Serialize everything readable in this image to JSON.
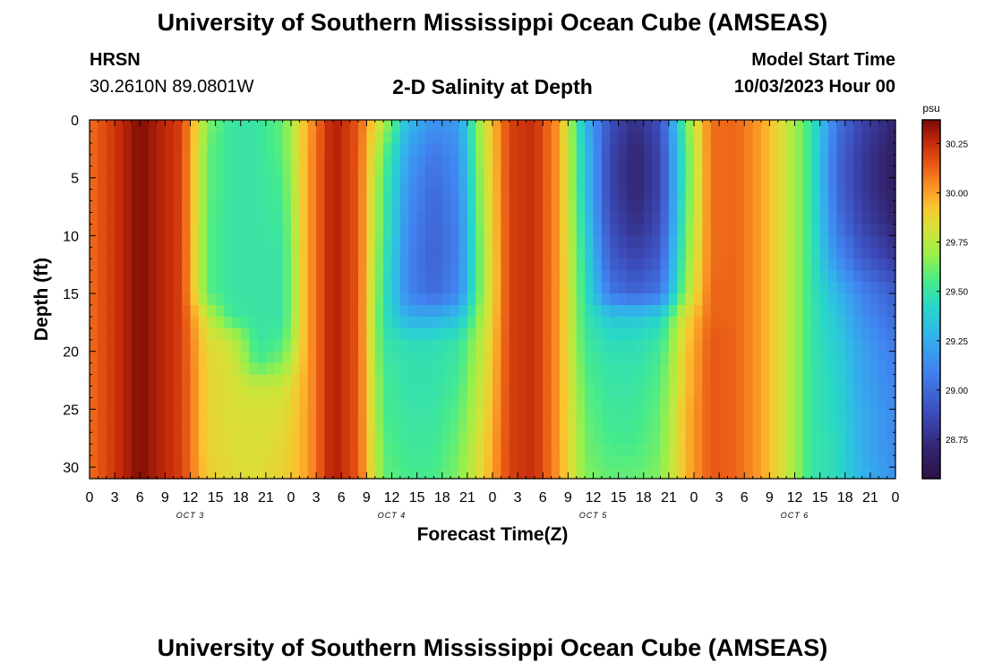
{
  "header": {
    "title": "University of Southern Mississippi Ocean Cube (AMSEAS)",
    "station": "HRSN",
    "coordinates": "30.2610N  89.0801W",
    "subtitle": "2-D Salinity at Depth",
    "model_start_label": "Model Start Time",
    "model_start_value": "10/03/2023 Hour 00"
  },
  "footer": {
    "title": "University of Southern Mississippi Ocean Cube (AMSEAS)"
  },
  "chart_data": {
    "type": "heatmap",
    "title": "2-D Salinity at Depth",
    "xlabel": "Forecast Time(Z)",
    "ylabel": "Depth (ft)",
    "x_range_hours": [
      0,
      96
    ],
    "ylim": [
      0,
      31
    ],
    "y_inverted": true,
    "xticks": [
      0,
      3,
      6,
      9,
      12,
      15,
      18,
      21,
      24,
      27,
      30,
      33,
      36,
      39,
      42,
      45,
      48,
      51,
      54,
      57,
      60,
      63,
      66,
      69,
      72,
      75,
      78,
      81,
      84,
      87,
      90,
      93,
      96
    ],
    "xtick_labels": [
      "0",
      "3",
      "6",
      "9",
      "12",
      "15",
      "18",
      "21",
      "0",
      "3",
      "6",
      "9",
      "12",
      "15",
      "18",
      "21",
      "0",
      "3",
      "6",
      "9",
      "12",
      "15",
      "18",
      "21",
      "0",
      "3",
      "6",
      "9",
      "12",
      "15",
      "18",
      "21",
      "0"
    ],
    "day_labels": [
      {
        "at_hour": 12,
        "label": "OCT 3"
      },
      {
        "at_hour": 36,
        "label": "OCT 4"
      },
      {
        "at_hour": 60,
        "label": "OCT 5"
      },
      {
        "at_hour": 84,
        "label": "OCT 6"
      }
    ],
    "yticks": [
      0,
      5,
      10,
      15,
      20,
      25,
      30
    ],
    "colorbar": {
      "units": "psu",
      "range": [
        28.55,
        30.37
      ],
      "ticks": [
        30.25,
        30.0,
        29.75,
        29.5,
        29.25,
        29.0,
        28.75
      ],
      "tick_labels": [
        "30.25",
        "30.00",
        "29.75",
        "29.50",
        "29.25",
        "29.00",
        "28.75"
      ]
    },
    "time_hours": [
      0,
      6,
      11,
      14,
      17,
      20,
      23,
      26,
      29,
      32,
      35,
      38,
      41,
      44,
      47,
      50,
      53,
      56,
      59,
      62,
      65,
      68,
      71,
      74,
      77,
      80,
      83,
      86,
      89,
      92,
      96
    ],
    "depth_ft": [
      0,
      3,
      6,
      9,
      12,
      15,
      17,
      19,
      21,
      23,
      25,
      28,
      31
    ],
    "salinity_psu": [
      [
        30.1,
        30.1,
        30.1,
        30.1,
        30.1,
        30.1,
        30.1,
        30.1,
        30.1,
        30.1,
        30.1,
        30.1,
        30.1
      ],
      [
        30.36,
        30.36,
        30.36,
        30.36,
        30.36,
        30.36,
        30.36,
        30.36,
        30.36,
        30.36,
        30.36,
        30.36,
        30.36
      ],
      [
        30.2,
        30.2,
        30.2,
        30.2,
        30.2,
        30.2,
        30.2,
        30.2,
        30.2,
        30.2,
        30.2,
        30.2,
        30.2
      ],
      [
        29.65,
        29.6,
        29.6,
        29.58,
        29.58,
        29.58,
        29.78,
        29.85,
        29.87,
        29.88,
        29.88,
        29.88,
        29.9
      ],
      [
        29.5,
        29.5,
        29.5,
        29.5,
        29.5,
        29.5,
        29.52,
        29.78,
        29.82,
        29.83,
        29.83,
        29.84,
        29.85
      ],
      [
        29.5,
        29.5,
        29.5,
        29.5,
        29.5,
        29.5,
        29.5,
        29.5,
        29.55,
        29.78,
        29.82,
        29.83,
        29.84
      ],
      [
        29.6,
        29.58,
        29.55,
        29.52,
        29.5,
        29.5,
        29.5,
        29.55,
        29.65,
        29.8,
        29.83,
        29.86,
        29.88
      ],
      [
        29.98,
        30.0,
        30.0,
        30.0,
        30.0,
        30.0,
        30.0,
        30.0,
        30.0,
        30.0,
        30.0,
        30.0,
        30.0
      ],
      [
        30.3,
        30.3,
        30.3,
        30.3,
        30.3,
        30.3,
        30.3,
        30.3,
        30.3,
        30.3,
        30.3,
        30.3,
        30.3
      ],
      [
        30.15,
        30.15,
        30.15,
        30.15,
        30.15,
        30.15,
        30.15,
        30.15,
        30.15,
        30.15,
        30.15,
        30.15,
        30.15
      ],
      [
        29.75,
        29.6,
        29.55,
        29.55,
        29.52,
        29.5,
        29.48,
        29.5,
        29.52,
        29.55,
        29.55,
        29.58,
        29.6
      ],
      [
        29.3,
        29.2,
        29.15,
        29.12,
        29.1,
        29.1,
        29.25,
        29.45,
        29.48,
        29.48,
        29.5,
        29.52,
        29.55
      ],
      [
        29.15,
        29.05,
        29.0,
        28.98,
        28.97,
        29.0,
        29.25,
        29.45,
        29.48,
        29.48,
        29.5,
        29.52,
        29.55
      ],
      [
        29.2,
        29.15,
        29.12,
        29.1,
        29.1,
        29.12,
        29.32,
        29.5,
        29.52,
        29.55,
        29.58,
        29.62,
        29.65
      ],
      [
        29.8,
        29.78,
        29.76,
        29.74,
        29.72,
        29.72,
        29.75,
        29.78,
        29.8,
        29.82,
        29.84,
        29.88,
        29.9
      ],
      [
        30.2,
        30.2,
        30.2,
        30.2,
        30.2,
        30.2,
        30.2,
        30.2,
        30.2,
        30.2,
        30.2,
        30.2,
        30.2
      ],
      [
        30.25,
        30.25,
        30.25,
        30.25,
        30.25,
        30.25,
        30.25,
        30.25,
        30.25,
        30.25,
        30.25,
        30.25,
        30.25
      ],
      [
        30.0,
        30.0,
        30.0,
        30.0,
        30.0,
        30.0,
        30.0,
        30.0,
        30.0,
        30.0,
        30.0,
        30.0,
        30.0
      ],
      [
        29.3,
        29.35,
        29.35,
        29.4,
        29.45,
        29.48,
        29.5,
        29.52,
        29.55,
        29.58,
        29.6,
        29.62,
        29.65
      ],
      [
        28.9,
        28.85,
        28.85,
        28.88,
        28.95,
        29.05,
        29.35,
        29.45,
        29.48,
        29.5,
        29.52,
        29.55,
        29.6
      ],
      [
        28.75,
        28.7,
        28.7,
        28.75,
        28.85,
        28.98,
        29.35,
        29.45,
        29.48,
        29.5,
        29.52,
        29.55,
        29.6
      ],
      [
        28.9,
        28.85,
        28.85,
        28.88,
        28.95,
        29.05,
        29.4,
        29.5,
        29.55,
        29.58,
        29.6,
        29.62,
        29.65
      ],
      [
        29.6,
        29.55,
        29.55,
        29.58,
        29.62,
        29.68,
        29.85,
        29.9,
        29.92,
        29.92,
        29.95,
        29.95,
        29.95
      ],
      [
        30.1,
        30.1,
        30.1,
        30.1,
        30.1,
        30.12,
        30.12,
        30.15,
        30.15,
        30.15,
        30.15,
        30.15,
        30.15
      ],
      [
        30.12,
        30.12,
        30.12,
        30.12,
        30.12,
        30.12,
        30.12,
        30.12,
        30.12,
        30.12,
        30.12,
        30.12,
        30.12
      ],
      [
        30.0,
        30.0,
        30.0,
        30.0,
        30.0,
        30.0,
        30.0,
        30.0,
        30.0,
        30.0,
        30.0,
        30.0,
        30.0
      ],
      [
        29.8,
        29.8,
        29.8,
        29.8,
        29.8,
        29.8,
        29.8,
        29.8,
        29.8,
        29.8,
        29.8,
        29.8,
        29.8
      ],
      [
        29.5,
        29.5,
        29.5,
        29.5,
        29.5,
        29.5,
        29.5,
        29.5,
        29.5,
        29.5,
        29.5,
        29.5,
        29.5
      ],
      [
        29.05,
        29.0,
        29.0,
        29.05,
        29.15,
        29.3,
        29.35,
        29.38,
        29.4,
        29.42,
        29.42,
        29.45,
        29.45
      ],
      [
        28.85,
        28.8,
        28.8,
        28.85,
        28.95,
        29.1,
        29.15,
        29.2,
        29.22,
        29.22,
        29.25,
        29.25,
        29.28
      ],
      [
        28.7,
        28.65,
        28.65,
        28.7,
        28.8,
        28.95,
        29.0,
        29.05,
        29.08,
        29.1,
        29.12,
        29.12,
        29.15
      ]
    ]
  }
}
